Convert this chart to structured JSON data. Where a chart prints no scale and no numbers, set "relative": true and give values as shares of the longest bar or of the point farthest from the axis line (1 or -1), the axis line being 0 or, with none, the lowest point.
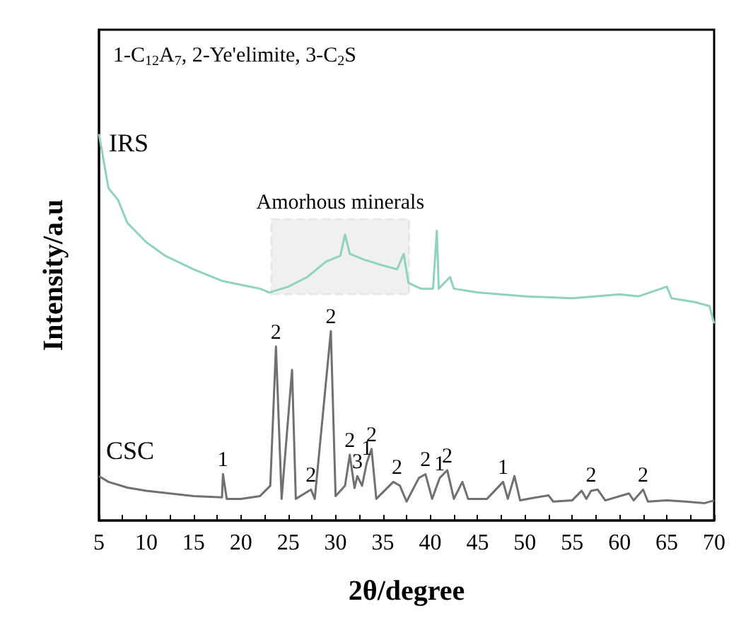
{
  "chart_data": {
    "type": "line",
    "relative": true,
    "xlabel": "2θ/degree",
    "ylabel": "Intensity/a.u",
    "xlim": [
      5,
      70
    ],
    "xticks": [
      5,
      10,
      15,
      20,
      25,
      30,
      35,
      40,
      45,
      50,
      55,
      60,
      65,
      70
    ],
    "tick_labels": "x",
    "legend": false,
    "grid": false,
    "marker": "none",
    "line_style": "solid",
    "series": [
      {
        "name": "IRS",
        "color": "#8fd3bf",
        "x": [
          5,
          5.5,
          6,
          7,
          8,
          10,
          12,
          15,
          18,
          20,
          22,
          23,
          25,
          27,
          29,
          30.5,
          31,
          31.5,
          33,
          35,
          36.5,
          37.2,
          37.7,
          39,
          40.3,
          40.7,
          40.9,
          42.1,
          42.5,
          45,
          50,
          55,
          60,
          62,
          65,
          65.5,
          68,
          69.5,
          70
        ],
        "values": [
          1.0,
          0.93,
          0.86,
          0.83,
          0.77,
          0.72,
          0.685,
          0.65,
          0.62,
          0.61,
          0.6,
          0.59,
          0.605,
          0.63,
          0.67,
          0.685,
          0.74,
          0.69,
          0.675,
          0.66,
          0.65,
          0.69,
          0.615,
          0.6,
          0.6,
          0.75,
          0.6,
          0.63,
          0.6,
          0.59,
          0.58,
          0.575,
          0.585,
          0.58,
          0.605,
          0.575,
          0.565,
          0.555,
          0.51
        ]
      },
      {
        "name": "CSC",
        "color": "#707070",
        "x": [
          5,
          6,
          8,
          10,
          15,
          18,
          18.1,
          18.5,
          20,
          22,
          23.1,
          23.7,
          24.3,
          25.4,
          25.8,
          27.4,
          27.8,
          29.5,
          30,
          31,
          31.5,
          32,
          32.3,
          32.8,
          33.3,
          33.8,
          34.3,
          36.1,
          36.8,
          37.5,
          38.8,
          39.5,
          40.2,
          41,
          41.8,
          42.5,
          43.4,
          44,
          46,
          47.7,
          48.2,
          48.9,
          49.5,
          51,
          52.5,
          53,
          55,
          56,
          56.5,
          57,
          57.7,
          58.5,
          61,
          61.5,
          62.5,
          63,
          65,
          67,
          69,
          70
        ],
        "values": [
          0.115,
          0.1,
          0.085,
          0.077,
          0.063,
          0.06,
          0.12,
          0.056,
          0.056,
          0.063,
          0.09,
          0.45,
          0.056,
          0.39,
          0.056,
          0.08,
          0.056,
          0.49,
          0.063,
          0.09,
          0.17,
          0.084,
          0.115,
          0.09,
          0.15,
          0.185,
          0.056,
          0.1,
          0.09,
          0.049,
          0.11,
          0.12,
          0.056,
          0.11,
          0.13,
          0.056,
          0.1,
          0.056,
          0.056,
          0.1,
          0.056,
          0.115,
          0.052,
          0.059,
          0.065,
          0.049,
          0.052,
          0.077,
          0.056,
          0.077,
          0.08,
          0.052,
          0.07,
          0.052,
          0.08,
          0.049,
          0.052,
          0.049,
          0.045,
          0.052
        ]
      }
    ],
    "bands": [
      {
        "axis": "x",
        "from": 23.2,
        "to": 37.8,
        "label": "Amorhous minerals",
        "color": "#000000"
      }
    ],
    "annotations": [
      "1-C$_{12}$A$_{7}$, 2-Ye'elimite, 3-C$_{2}$S",
      {
        "text": "1",
        "x": 18.1,
        "y": 0.12
      },
      {
        "text": "2",
        "x": 23.7,
        "y": 0.45
      },
      {
        "text": "2",
        "x": 27.4,
        "y": 0.08
      },
      {
        "text": "2",
        "x": 29.5,
        "y": 0.49
      },
      {
        "text": "2",
        "x": 31.5,
        "y": 0.17
      },
      {
        "text": "3",
        "x": 32.3,
        "y": 0.115
      },
      {
        "text": "1",
        "x": 33.3,
        "y": 0.15
      },
      {
        "text": "2",
        "x": 33.8,
        "y": 0.185
      },
      {
        "text": "2",
        "x": 36.5,
        "y": 0.1
      },
      {
        "text": "2",
        "x": 39.5,
        "y": 0.12
      },
      {
        "text": "1",
        "x": 41,
        "y": 0.11
      },
      {
        "text": "2",
        "x": 41.8,
        "y": 0.13
      },
      {
        "text": "1",
        "x": 47.7,
        "y": 0.1
      },
      {
        "text": "2",
        "x": 57,
        "y": 0.08
      },
      {
        "text": "2",
        "x": 62.5,
        "y": 0.08
      }
    ]
  }
}
